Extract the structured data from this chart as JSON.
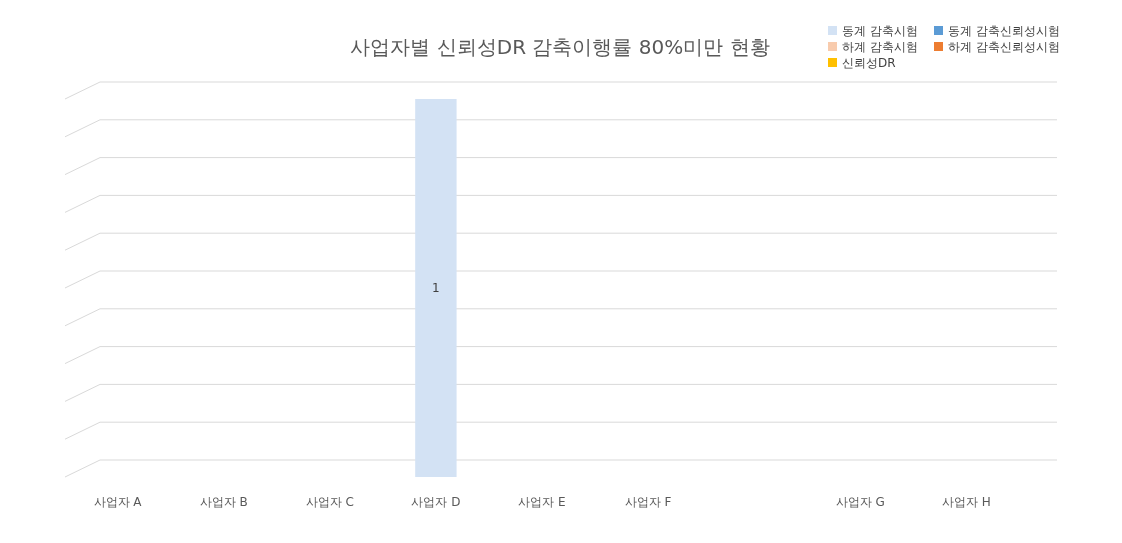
{
  "chart_data": {
    "type": "bar",
    "title": "사업자별 신뢰성DR 감축이행률 80%미만 현황",
    "categories": [
      "사업자 A",
      "사업자 B",
      "사업자 C",
      "사업자 D",
      "사업자 E",
      "사업자 F",
      null,
      "사업자 G",
      "사업자 H"
    ],
    "series": [
      {
        "name": "동계 감축시험",
        "color": "#d3e2f4",
        "values": [
          null,
          null,
          null,
          1,
          null,
          null,
          null,
          null,
          null
        ]
      },
      {
        "name": "동계 감축신뢰성시험",
        "color": "#5b9bd5",
        "values": [
          null,
          null,
          null,
          null,
          null,
          null,
          null,
          null,
          null
        ]
      },
      {
        "name": "하계 감축시험",
        "color": "#f8cbad",
        "values": [
          null,
          null,
          null,
          null,
          null,
          null,
          null,
          null,
          null
        ]
      },
      {
        "name": "하계 감축신뢰성시험",
        "color": "#ed7d31",
        "values": [
          null,
          null,
          null,
          null,
          null,
          null,
          null,
          null,
          null
        ]
      },
      {
        "name": "신뢰성DR",
        "color": "#ffc000",
        "values": [
          null,
          null,
          null,
          null,
          null,
          null,
          null,
          null,
          null
        ]
      }
    ],
    "ylim": [
      0,
      1
    ],
    "tick_labels": "x",
    "grid": "y",
    "legend": "top right",
    "data_labels": true
  }
}
